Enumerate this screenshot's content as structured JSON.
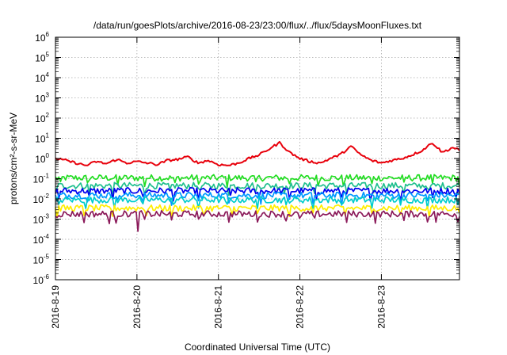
{
  "chart_data": {
    "type": "line",
    "title": "/data/run/goesPlots/archive/2016-08-23/23:00/flux/../flux/5daysMoonFluxes.txt",
    "xlabel": "Coordinated Universal Time (UTC)",
    "ylabel": "protons/cm²-s-sr-MeV",
    "x_range": [
      "2016-08-19T00:00",
      "2016-08-23T23:00"
    ],
    "x_ticks": [
      "2016-8-19",
      "2016-8-20",
      "2016-8-21",
      "2016-8-22",
      "2016-8-23"
    ],
    "y_scale": "log",
    "y_range": [
      1e-06,
      1000000.0
    ],
    "y_ticks": [
      {
        "base": "10",
        "exp": "-6"
      },
      {
        "base": "10",
        "exp": "-5"
      },
      {
        "base": "10",
        "exp": "-4"
      },
      {
        "base": "10",
        "exp": "-3"
      },
      {
        "base": "10",
        "exp": "-2"
      },
      {
        "base": "10",
        "exp": "-1"
      },
      {
        "base": "10",
        "exp": "0"
      },
      {
        "base": "10",
        "exp": "1"
      },
      {
        "base": "10",
        "exp": "2"
      },
      {
        "base": "10",
        "exp": "3"
      },
      {
        "base": "10",
        "exp": "4"
      },
      {
        "base": "10",
        "exp": "5"
      },
      {
        "base": "10",
        "exp": "6"
      }
    ],
    "grid": true,
    "series": [
      {
        "color": "#e8000b",
        "dips": [],
        "values": [
          [
            "2016-08-19T00:00",
            1.0
          ],
          [
            "2016-08-19T03:00",
            0.8
          ],
          [
            "2016-08-19T06:00",
            0.6
          ],
          [
            "2016-08-19T09:00",
            0.45
          ],
          [
            "2016-08-19T12:00",
            0.7
          ],
          [
            "2016-08-19T15:00",
            0.55
          ],
          [
            "2016-08-19T18:00",
            0.9
          ],
          [
            "2016-08-19T21:00",
            0.6
          ],
          [
            "2016-08-20T00:00",
            0.7
          ],
          [
            "2016-08-20T03:00",
            0.6
          ],
          [
            "2016-08-20T06:00",
            0.5
          ],
          [
            "2016-08-20T09:00",
            0.8
          ],
          [
            "2016-08-20T12:00",
            0.9
          ],
          [
            "2016-08-20T15:00",
            1.2
          ],
          [
            "2016-08-20T18:00",
            0.6
          ],
          [
            "2016-08-20T21:00",
            0.8
          ],
          [
            "2016-08-21T00:00",
            0.5
          ],
          [
            "2016-08-21T03:00",
            0.45
          ],
          [
            "2016-08-21T06:00",
            0.6
          ],
          [
            "2016-08-21T09:00",
            1.0
          ],
          [
            "2016-08-21T12:00",
            1.5
          ],
          [
            "2016-08-21T15:00",
            3.0
          ],
          [
            "2016-08-21T18:00",
            6.0
          ],
          [
            "2016-08-21T21:00",
            2.0
          ],
          [
            "2016-08-22T00:00",
            1.0
          ],
          [
            "2016-08-22T03:00",
            0.7
          ],
          [
            "2016-08-22T06:00",
            0.6
          ],
          [
            "2016-08-22T09:00",
            1.0
          ],
          [
            "2016-08-22T12:00",
            1.6
          ],
          [
            "2016-08-22T15:00",
            4.0
          ],
          [
            "2016-08-22T18:00",
            1.5
          ],
          [
            "2016-08-22T21:00",
            0.8
          ],
          [
            "2016-08-23T00:00",
            0.6
          ],
          [
            "2016-08-23T03:00",
            0.8
          ],
          [
            "2016-08-23T06:00",
            1.0
          ],
          [
            "2016-08-23T09:00",
            1.5
          ],
          [
            "2016-08-23T12:00",
            2.5
          ],
          [
            "2016-08-23T15:00",
            6.0
          ],
          [
            "2016-08-23T18:00",
            2.0
          ],
          [
            "2016-08-23T21:00",
            3.5
          ],
          [
            "2016-08-23T23:00",
            2.5
          ]
        ]
      },
      {
        "color": "#22dd22",
        "level": 0.11,
        "dips": [],
        "values": []
      },
      {
        "color": "#1fbf8f",
        "level": 0.045,
        "dips": [],
        "values": []
      },
      {
        "color": "#0000ee",
        "level": 0.025,
        "dips": [],
        "values": []
      },
      {
        "color": "#0099ff",
        "level": 0.015,
        "dips": [],
        "values": []
      },
      {
        "color": "#00cccc",
        "level": 0.009,
        "dips": [],
        "values": []
      },
      {
        "color": "#ffee00",
        "level": 0.0035,
        "dips": [],
        "values": []
      },
      {
        "color": "#8b1a5a",
        "level": 0.0018,
        "dips": [
          [
            "2016-08-19T00:30",
            0.0012
          ],
          [
            "2016-08-19T16:00",
            0.0006
          ],
          [
            "2016-08-20T00:30",
            0.00025
          ],
          [
            "2016-08-21T03:00",
            0.0007
          ],
          [
            "2016-08-22T00:00",
            0.0011
          ],
          [
            "2016-08-23T16:00",
            0.0007
          ]
        ],
        "values": []
      }
    ]
  }
}
